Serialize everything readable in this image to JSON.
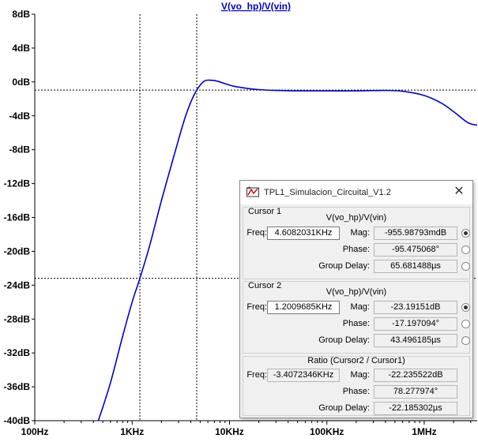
{
  "chart_data": {
    "type": "line",
    "title": "V(vo_hp)/V(vin)",
    "xscale": "log",
    "xlim": [
      100,
      3500000
    ],
    "ylim": [
      -40,
      8
    ],
    "x_ticks": [
      100,
      1000,
      10000,
      100000,
      1000000
    ],
    "x_tick_labels": [
      "100Hz",
      "1KHz",
      "10KHz",
      "100KHz",
      "1MHz"
    ],
    "y_ticks": [
      8,
      4,
      0,
      -4,
      -8,
      -12,
      -16,
      -20,
      -24,
      -28,
      -32,
      -36,
      -40
    ],
    "y_tick_labels": [
      "8dB",
      "4dB",
      "0dB",
      "-4dB",
      "-8dB",
      "-12dB",
      "-16dB",
      "-20dB",
      "-24dB",
      "-28dB",
      "-32dB",
      "-36dB",
      "-40dB"
    ],
    "grid": false,
    "series": [
      {
        "name": "V(vo_hp)/V(vin)",
        "color": "#0000cc",
        "x": [
          450,
          600,
          800,
          1000,
          1200,
          1500,
          2000,
          2500,
          3000,
          3500,
          4000,
          4608,
          5500,
          6500,
          7500,
          9000,
          11000,
          14000,
          20000,
          30000,
          50000,
          100000,
          200000,
          400000,
          600000,
          1000000,
          1500000,
          2000000,
          2800000,
          3500000
        ],
        "y": [
          -40,
          -35.5,
          -30,
          -26,
          -23.2,
          -19.5,
          -14,
          -10,
          -6.8,
          -4.2,
          -2.4,
          -0.96,
          0.1,
          0.2,
          0.1,
          -0.2,
          -0.5,
          -0.7,
          -0.9,
          -1.0,
          -1.05,
          -1.05,
          -1.05,
          -1.0,
          -1.1,
          -1.6,
          -2.5,
          -3.5,
          -4.8,
          -5.1
        ]
      }
    ],
    "cursors": [
      {
        "name": "Cursor 1",
        "x": 4608.2031,
        "y": -0.956
      },
      {
        "name": "Cursor 2",
        "x": 1200.9685,
        "y": -23.19151
      }
    ]
  },
  "window": {
    "title": "TPL1_Simulacion_Circuital_V1.2",
    "close": "✕",
    "cursor1": {
      "label": "Cursor 1",
      "expr": "V(vo_hp)/V(vin)",
      "freq_label": "Freq:",
      "freq": "4.6082031KHz",
      "mag_label": "Mag:",
      "mag": "-955.98793mdB",
      "phase_label": "Phase:",
      "phase": "-95.475068°",
      "gd_label": "Group Delay:",
      "gd": "65.681488µs"
    },
    "cursor2": {
      "label": "Cursor 2",
      "expr": "V(vo_hp)/V(vin)",
      "freq_label": "Freq:",
      "freq": "1.2009685KHz",
      "mag_label": "Mag:",
      "mag": "-23.19151dB",
      "phase_label": "Phase:",
      "phase": "-17.197094°",
      "gd_label": "Group Delay:",
      "gd": "43.496185µs"
    },
    "ratio": {
      "label": "Ratio (Cursor2 / Cursor1)",
      "freq_label": "Freq:",
      "freq": "-3.4072346KHz",
      "mag_label": "Mag:",
      "mag": "-22.235522dB",
      "phase_label": "Phase:",
      "phase": "78.277974°",
      "gd_label": "Group Delay:",
      "gd": "-22.185302µs"
    }
  }
}
